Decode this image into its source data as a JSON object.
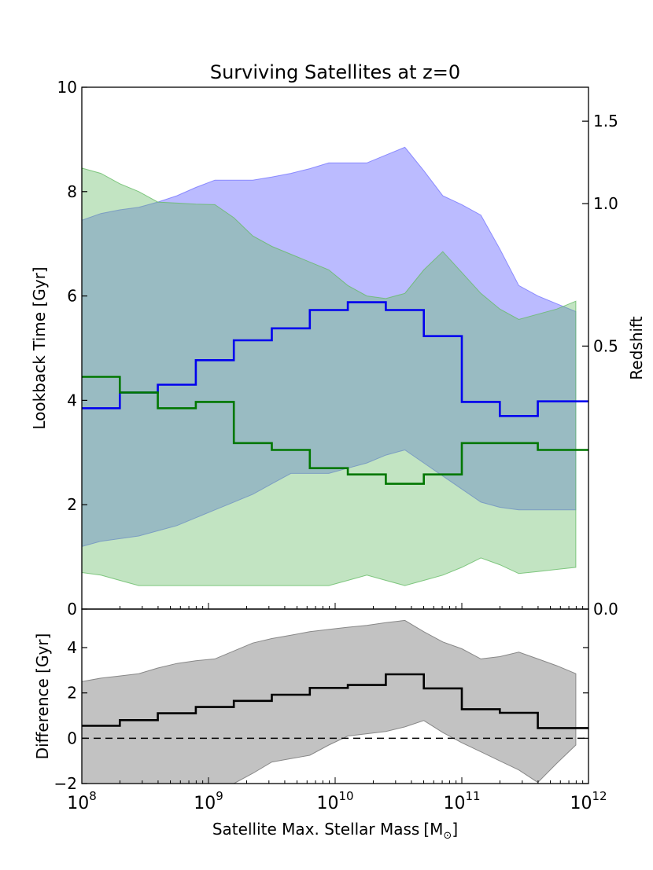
{
  "chart_data": [
    {
      "type": "step-band",
      "panel": "top",
      "title": "Surviving Satellites at z=0",
      "ylabel": "Lookback Time [Gyr]",
      "ylabel_right": "Redshift",
      "xscale": "log",
      "xlim_log10": [
        8,
        12
      ],
      "ylim": [
        0,
        10
      ],
      "yticks": [
        0,
        2,
        4,
        6,
        8,
        10
      ],
      "right_ticks": [
        {
          "label": "0.0",
          "lookback": 0
        },
        {
          "label": "0.5",
          "lookback": 5.04
        },
        {
          "label": "1.0",
          "lookback": 7.77
        },
        {
          "label": "1.5",
          "lookback": 9.35
        }
      ],
      "bands": [
        {
          "name": "blue band",
          "color": "#7777ff",
          "alpha": 0.5,
          "x_log10": [
            8.0,
            8.15,
            8.3,
            8.45,
            8.6,
            8.75,
            8.9,
            9.05,
            9.2,
            9.35,
            9.5,
            9.65,
            9.8,
            9.95,
            10.1,
            10.25,
            10.4,
            10.55,
            10.7,
            10.85,
            11.0,
            11.15,
            11.3,
            11.45,
            11.6,
            11.75,
            11.9
          ],
          "upper": [
            7.45,
            7.58,
            7.65,
            7.7,
            7.8,
            7.92,
            8.08,
            8.22,
            8.22,
            8.22,
            8.28,
            8.35,
            8.44,
            8.55,
            8.55,
            8.55,
            8.7,
            8.85,
            8.4,
            7.92,
            7.75,
            7.55,
            6.9,
            6.2,
            6.0,
            5.85,
            5.7
          ],
          "lower": [
            1.2,
            1.3,
            1.35,
            1.4,
            1.5,
            1.6,
            1.75,
            1.9,
            2.05,
            2.2,
            2.4,
            2.6,
            2.6,
            2.6,
            2.7,
            2.8,
            2.95,
            3.05,
            2.8,
            2.55,
            2.3,
            2.05,
            1.95,
            1.9,
            1.9,
            1.9,
            1.9
          ]
        },
        {
          "name": "green band",
          "color": "#66bb66",
          "alpha": 0.4,
          "x_log10": [
            8.0,
            8.15,
            8.3,
            8.45,
            8.6,
            8.75,
            8.9,
            9.05,
            9.2,
            9.35,
            9.5,
            9.65,
            9.8,
            9.95,
            10.1,
            10.25,
            10.4,
            10.55,
            10.7,
            10.85,
            11.0,
            11.15,
            11.3,
            11.45,
            11.6,
            11.75,
            11.9
          ],
          "upper": [
            8.45,
            8.35,
            8.15,
            8.0,
            7.8,
            7.78,
            7.76,
            7.75,
            7.5,
            7.15,
            6.95,
            6.8,
            6.65,
            6.5,
            6.2,
            6.0,
            5.95,
            6.05,
            6.5,
            6.85,
            6.45,
            6.05,
            5.75,
            5.55,
            5.65,
            5.75,
            5.9
          ],
          "lower": [
            0.7,
            0.65,
            0.55,
            0.45,
            0.45,
            0.45,
            0.45,
            0.45,
            0.45,
            0.45,
            0.45,
            0.45,
            0.45,
            0.45,
            0.55,
            0.65,
            0.55,
            0.45,
            0.55,
            0.65,
            0.8,
            0.98,
            0.85,
            0.68,
            0.72,
            0.76,
            0.8
          ]
        }
      ],
      "step_series": [
        {
          "name": "blue median",
          "color": "#0000ee",
          "edges_log10": [
            8.0,
            8.3,
            8.6,
            8.9,
            9.2,
            9.5,
            9.8,
            10.1,
            10.4,
            10.7,
            11.0,
            11.3,
            11.6,
            12.0
          ],
          "values": [
            3.85,
            4.15,
            4.3,
            4.77,
            5.15,
            5.38,
            5.73,
            5.88,
            5.73,
            5.23,
            3.97,
            3.7,
            3.98
          ]
        },
        {
          "name": "green median",
          "color": "#007700",
          "edges_log10": [
            8.0,
            8.3,
            8.6,
            8.9,
            9.2,
            9.5,
            9.8,
            10.1,
            10.4,
            10.7,
            11.0,
            11.3,
            11.6,
            12.0
          ],
          "values": [
            4.45,
            4.15,
            3.85,
            3.97,
            3.18,
            3.05,
            2.7,
            2.58,
            2.4,
            2.58,
            3.18,
            3.18,
            3.05
          ]
        }
      ]
    },
    {
      "type": "step-band",
      "panel": "bottom",
      "ylabel": "Difference [Gyr]",
      "xlabel": "Satellite Max. Stellar Mass",
      "xlabel_unit": "M",
      "xlabel_unit_sub": "⊙",
      "xscale": "log",
      "xlim_log10": [
        8,
        12
      ],
      "ylim": [
        -2,
        5.7
      ],
      "yticks": [
        -2,
        0,
        2,
        4
      ],
      "xticks": [
        {
          "base": "10",
          "exp": "8",
          "log10": 8
        },
        {
          "base": "10",
          "exp": "9",
          "log10": 9
        },
        {
          "base": "10",
          "exp": "10",
          "log10": 10
        },
        {
          "base": "10",
          "exp": "11",
          "log10": 11
        },
        {
          "base": "10",
          "exp": "12",
          "log10": 12
        }
      ],
      "reference_line": {
        "y": 0,
        "style": "dashed",
        "color": "#000000"
      },
      "band": {
        "name": "gray band",
        "color": "#999999",
        "alpha": 0.6,
        "x_log10": [
          8.0,
          8.15,
          8.3,
          8.45,
          8.6,
          8.75,
          8.9,
          9.05,
          9.2,
          9.35,
          9.5,
          9.65,
          9.8,
          9.95,
          10.1,
          10.25,
          10.4,
          10.55,
          10.7,
          10.85,
          11.0,
          11.15,
          11.3,
          11.45,
          11.6,
          11.75,
          11.9
        ],
        "upper": [
          2.5,
          2.65,
          2.75,
          2.85,
          3.1,
          3.3,
          3.42,
          3.5,
          3.85,
          4.2,
          4.4,
          4.55,
          4.7,
          4.8,
          4.9,
          4.98,
          5.1,
          5.2,
          4.7,
          4.25,
          3.95,
          3.5,
          3.6,
          3.8,
          3.5,
          3.2,
          2.85
        ],
        "lower": [
          -2.0,
          -2.0,
          -2.0,
          -2.0,
          -2.0,
          -2.0,
          -2.0,
          -2.0,
          -2.0,
          -1.55,
          -1.05,
          -0.9,
          -0.75,
          -0.3,
          0.1,
          0.2,
          0.3,
          0.5,
          0.78,
          0.25,
          -0.2,
          -0.6,
          -1.0,
          -1.4,
          -1.95,
          -1.1,
          -0.3
        ]
      },
      "step_series": [
        {
          "name": "difference median",
          "color": "#000000",
          "edges_log10": [
            8.0,
            8.3,
            8.6,
            8.9,
            9.2,
            9.5,
            9.8,
            10.1,
            10.4,
            10.7,
            11.0,
            11.3,
            11.6,
            12.0
          ],
          "values": [
            0.55,
            0.8,
            1.1,
            1.38,
            1.65,
            1.92,
            2.22,
            2.35,
            2.82,
            2.2,
            1.28,
            1.12,
            0.45
          ]
        }
      ]
    }
  ]
}
